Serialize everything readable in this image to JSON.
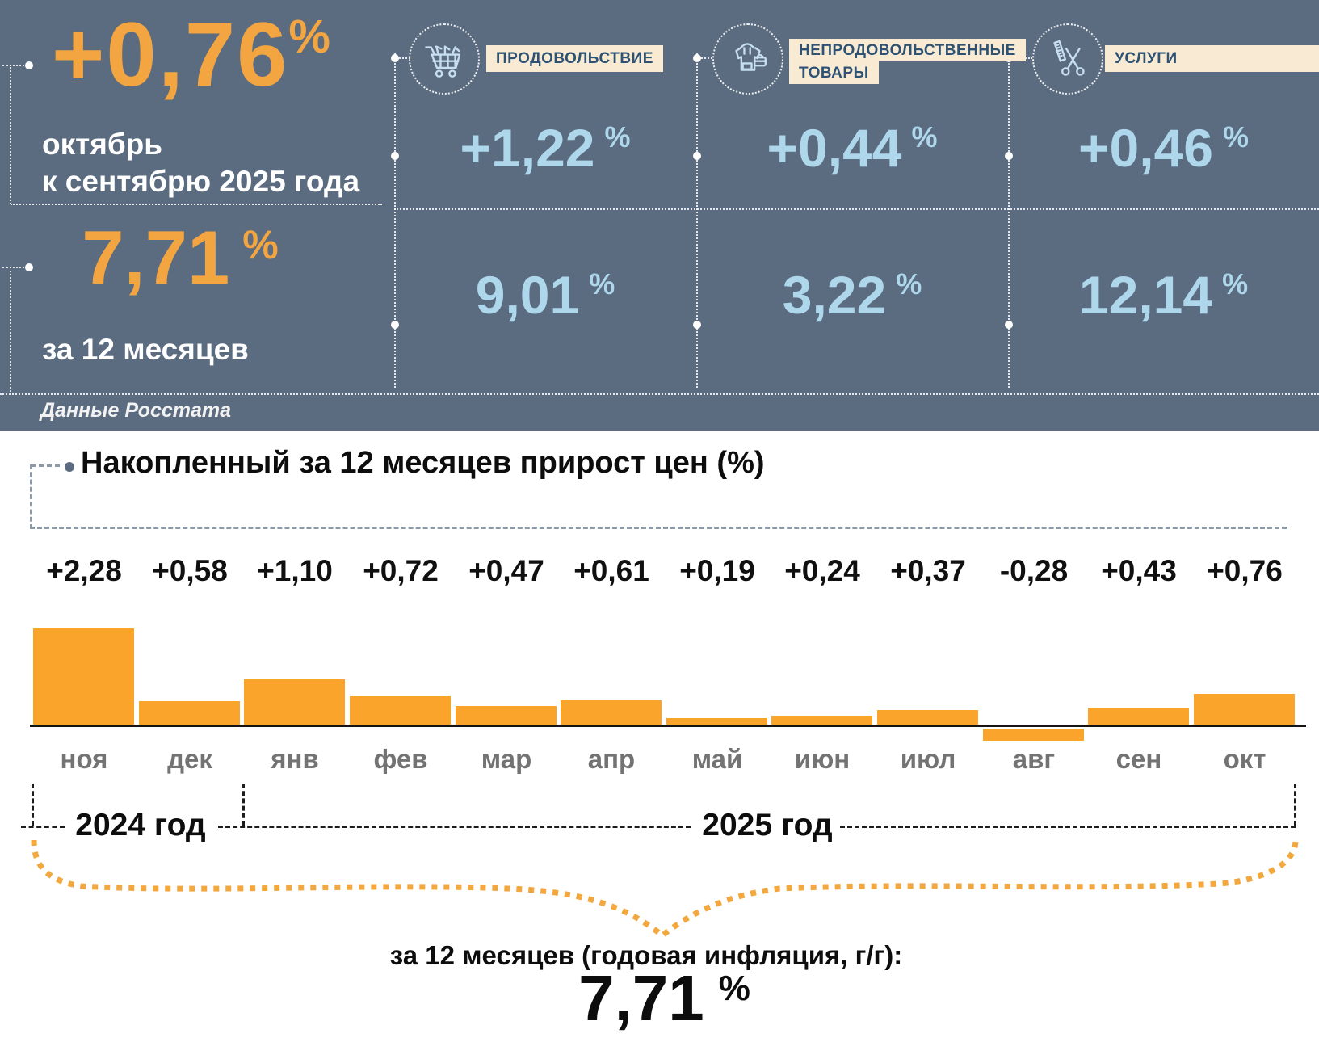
{
  "header": {
    "background": "#5b6c80",
    "accent_orange": "#f2a541",
    "accent_blue": "#aed7ec",
    "label_box_bg": "#f8ead3",
    "pct_sign": "%",
    "main": {
      "monthly_value": "+0,76",
      "monthly_caption_line1": "октябрь",
      "monthly_caption_line2": "к сентябрю 2025 года",
      "annual_value": "7,71",
      "annual_caption": "за 12 месяцев",
      "source": "Данные Росстата"
    },
    "categories": [
      {
        "label": "ПРОДОВОЛЬСТВИЕ",
        "label_line2": "",
        "icon": "shopping-cart-icon",
        "monthly": "+1,22",
        "annual": "9,01"
      },
      {
        "label": "НЕПРОДОВОЛЬСТВЕННЫЕ",
        "label_line2": "ТОВАРЫ",
        "icon": "clothing-bag-icon",
        "monthly": "+0,44",
        "annual": "3,22"
      },
      {
        "label": "УСЛУГИ",
        "label_line2": "",
        "icon": "scissors-comb-icon",
        "monthly": "+0,46",
        "annual": "12,14"
      }
    ]
  },
  "chart_data": {
    "type": "bar",
    "title": "Накопленный за 12 месяцев прирост цен (%)",
    "categories": [
      "ноя",
      "дек",
      "янв",
      "фев",
      "мар",
      "апр",
      "май",
      "июн",
      "июл",
      "авг",
      "сен",
      "окт"
    ],
    "values": [
      2.28,
      0.58,
      1.1,
      0.72,
      0.47,
      0.61,
      0.19,
      0.24,
      0.37,
      -0.28,
      0.43,
      0.76
    ],
    "value_labels": [
      "+2,28",
      "+0,58",
      "+1,10",
      "+0,72",
      "+0,47",
      "+0,61",
      "+0,19",
      "+0,24",
      "+0,37",
      "-0,28",
      "+0,43",
      "+0,76"
    ],
    "bar_color": "#faa42c",
    "ylim": [
      -0.5,
      2.5
    ],
    "grid": false,
    "legend": "none",
    "year_groups": [
      {
        "label": "2024 год",
        "months": [
          "ноя",
          "дек"
        ]
      },
      {
        "label": "2025 год",
        "months": [
          "янв",
          "фев",
          "мар",
          "апр",
          "май",
          "июн",
          "июл",
          "авг",
          "сен",
          "окт"
        ]
      }
    ]
  },
  "footer": {
    "label": "за 12 месяцев (годовая инфляция, г/г):",
    "value": "7,71",
    "pct": "%"
  }
}
